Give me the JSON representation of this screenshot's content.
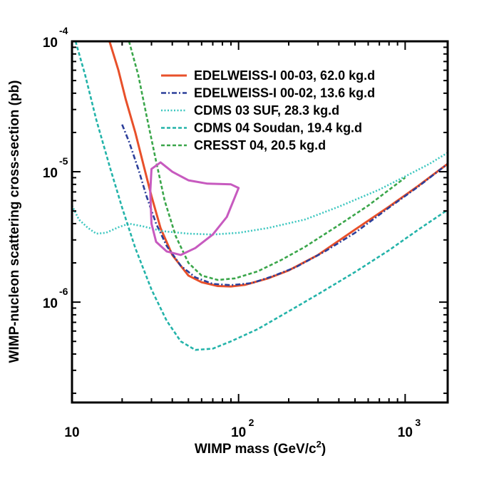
{
  "chart_data": {
    "type": "line",
    "xlabel": "WIMP mass (GeV/c²)",
    "ylabel": "WIMP-nucleon scattering cross-section (pb)",
    "x_scale": "log",
    "y_scale": "log",
    "xlim": [
      10,
      1800
    ],
    "ylim": [
      1.7e-07,
      0.0001
    ],
    "grid": false,
    "legend_position": "top-right",
    "x_ticks": [
      {
        "value": 10,
        "base": "10",
        "exp": ""
      },
      {
        "value": 100,
        "base": "10",
        "exp": "2"
      },
      {
        "value": 1000,
        "base": "10",
        "exp": "3"
      }
    ],
    "y_ticks": [
      {
        "value": 0.0001,
        "base": "10",
        "exp": "-4"
      },
      {
        "value": 1e-05,
        "base": "10",
        "exp": "-5"
      },
      {
        "value": 1e-06,
        "base": "10",
        "exp": "-6"
      }
    ],
    "series": [
      {
        "name": "EDELWEISS-I 00-03, 62.0 kg.d",
        "color": "#e8502a",
        "dash": "solid",
        "in_legend": true,
        "points": [
          [
            16.8,
            0.0001
          ],
          [
            19,
            6e-05
          ],
          [
            21,
            3.6e-05
          ],
          [
            24,
            2e-05
          ],
          [
            27,
            1.1e-05
          ],
          [
            30,
            6.5e-06
          ],
          [
            34,
            3.7e-06
          ],
          [
            40,
            2.3e-06
          ],
          [
            50,
            1.6e-06
          ],
          [
            60,
            1.42e-06
          ],
          [
            75,
            1.33e-06
          ],
          [
            90,
            1.32e-06
          ],
          [
            110,
            1.36e-06
          ],
          [
            150,
            1.52e-06
          ],
          [
            200,
            1.75e-06
          ],
          [
            300,
            2.3e-06
          ],
          [
            500,
            3.6e-06
          ],
          [
            800,
            5.4e-06
          ],
          [
            1200,
            7.8e-06
          ],
          [
            1800,
            1.15e-05
          ]
        ]
      },
      {
        "name": "EDELWEISS-I 00-02, 13.6 kg.d",
        "color": "#2c3f9a",
        "dash": "dashdot",
        "in_legend": true,
        "points": [
          [
            20,
            2.3e-05
          ],
          [
            22,
            1.7e-05
          ],
          [
            25,
            1.05e-05
          ],
          [
            28,
            6.5e-06
          ],
          [
            32,
            4e-06
          ],
          [
            37,
            2.7e-06
          ],
          [
            45,
            1.9e-06
          ],
          [
            55,
            1.55e-06
          ],
          [
            70,
            1.38e-06
          ],
          [
            90,
            1.35e-06
          ],
          [
            120,
            1.4e-06
          ],
          [
            160,
            1.58e-06
          ],
          [
            220,
            1.85e-06
          ],
          [
            330,
            2.45e-06
          ],
          [
            500,
            3.4e-06
          ],
          [
            800,
            5.3e-06
          ],
          [
            1200,
            7.7e-06
          ],
          [
            1800,
            1.15e-05
          ]
        ]
      },
      {
        "name": "CDMS 03 SUF, 28.3 kg.d",
        "color": "#3ec7c0",
        "dash": "dotted",
        "in_legend": true,
        "points": [
          [
            10,
            5.5e-06
          ],
          [
            11,
            4.3e-06
          ],
          [
            12.5,
            3.7e-06
          ],
          [
            14,
            3.35e-06
          ],
          [
            16,
            3.4e-06
          ],
          [
            19,
            3.75e-06
          ],
          [
            22,
            4e-06
          ],
          [
            27,
            3.8e-06
          ],
          [
            35,
            3.5e-06
          ],
          [
            50,
            3.35e-06
          ],
          [
            70,
            3.3e-06
          ],
          [
            100,
            3.4e-06
          ],
          [
            150,
            3.7e-06
          ],
          [
            250,
            4.3e-06
          ],
          [
            400,
            5.4e-06
          ],
          [
            700,
            7.3e-06
          ],
          [
            1000,
            9.2e-06
          ],
          [
            1400,
            1.15e-05
          ],
          [
            1800,
            1.4e-05
          ]
        ]
      },
      {
        "name": "CDMS 04 Soudan, 19.4 kg.d",
        "color": "#23b3a9",
        "dash": "dashed",
        "in_legend": true,
        "points": [
          [
            10.5,
            0.0001
          ],
          [
            12,
            5.5e-05
          ],
          [
            14,
            2.5e-05
          ],
          [
            17,
            1.05e-05
          ],
          [
            20,
            5.3e-06
          ],
          [
            24,
            2.6e-06
          ],
          [
            30,
            1.25e-06
          ],
          [
            37,
            7.2e-07
          ],
          [
            45,
            5e-07
          ],
          [
            55,
            4.3e-07
          ],
          [
            70,
            4.4e-07
          ],
          [
            90,
            5e-07
          ],
          [
            130,
            6.2e-07
          ],
          [
            200,
            8.5e-07
          ],
          [
            300,
            1.15e-06
          ],
          [
            500,
            1.7e-06
          ],
          [
            800,
            2.5e-06
          ],
          [
            1200,
            3.6e-06
          ],
          [
            1800,
            5.1e-06
          ]
        ]
      },
      {
        "name": "CRESST 04, 20.5 kg.d",
        "color": "#3aa64a",
        "dash": "dashed",
        "in_legend": true,
        "points": [
          [
            22,
            0.0001
          ],
          [
            25,
            5.5e-05
          ],
          [
            28,
            2.7e-05
          ],
          [
            32,
            1.2e-05
          ],
          [
            36,
            6e-06
          ],
          [
            42,
            3.2e-06
          ],
          [
            50,
            2e-06
          ],
          [
            60,
            1.6e-06
          ],
          [
            75,
            1.48e-06
          ],
          [
            95,
            1.52e-06
          ],
          [
            130,
            1.72e-06
          ],
          [
            180,
            2.1e-06
          ],
          [
            250,
            2.65e-06
          ],
          [
            400,
            3.9e-06
          ],
          [
            600,
            5.5e-06
          ],
          [
            1000,
            9e-06
          ]
        ]
      },
      {
        "name": "",
        "color": "#c75abf",
        "dash": "solid",
        "in_legend": false,
        "closed": true,
        "points": [
          [
            30,
            1.05e-05
          ],
          [
            34,
            1.18e-05
          ],
          [
            40,
            1e-05
          ],
          [
            50,
            8.6e-06
          ],
          [
            65,
            8.1e-06
          ],
          [
            90,
            8e-06
          ],
          [
            100,
            7.5e-06
          ],
          [
            85,
            4.5e-06
          ],
          [
            70,
            3.3e-06
          ],
          [
            55,
            2.6e-06
          ],
          [
            45,
            2.3e-06
          ],
          [
            37,
            2.45e-06
          ],
          [
            32,
            2.9e-06
          ],
          [
            30,
            4e-06
          ],
          [
            29.5,
            7e-06
          ]
        ]
      }
    ]
  }
}
